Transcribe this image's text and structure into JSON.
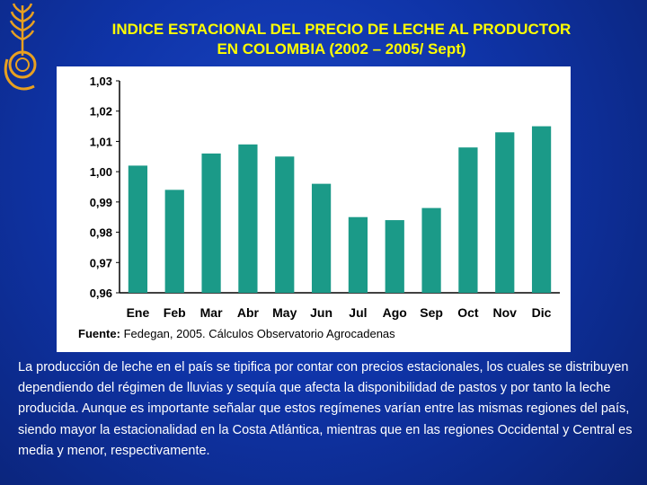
{
  "title_line1": "INDICE ESTACIONAL DEL PRECIO DE LECHE AL PRODUCTOR",
  "title_line2": "EN COLOMBIA (2002 – 2005/ Sept)",
  "source_label": "Fuente:",
  "source_text": "Fedegan, 2005. Cálculos Observatorio Agrocadenas",
  "paragraph": "La producción de leche en el país se tipifica por contar con precios estacionales, los cuales se distribuyen dependiendo del régimen de lluvias y sequía que afecta la disponibilidad de pastos y por tanto la leche producida. Aunque es importante señalar que estos regímenes varían entre las mismas regiones del país, siendo mayor la estacionalidad en la Costa Atlántica, mientras que en las regiones Occidental y Central es media y menor, respectivamente.",
  "colors": {
    "background": "#0f34a8",
    "title": "#ffff00",
    "bar": "#1b9a88",
    "logo": "#e8a020"
  },
  "chart_data": {
    "type": "bar",
    "title": "",
    "xlabel": "",
    "ylabel": "",
    "categories": [
      "Ene",
      "Feb",
      "Mar",
      "Abr",
      "May",
      "Jun",
      "Jul",
      "Ago",
      "Sep",
      "Oct",
      "Nov",
      "Dic"
    ],
    "values": [
      1.002,
      0.994,
      1.006,
      1.009,
      1.005,
      0.996,
      0.985,
      0.984,
      0.988,
      1.008,
      1.013,
      1.015
    ],
    "ylim": [
      0.96,
      1.03
    ],
    "yticks": [
      "1,03",
      "1,02",
      "1,01",
      "1,00",
      "0,99",
      "0,98",
      "0,97",
      "0,96"
    ],
    "grid": false,
    "legend": "none"
  }
}
